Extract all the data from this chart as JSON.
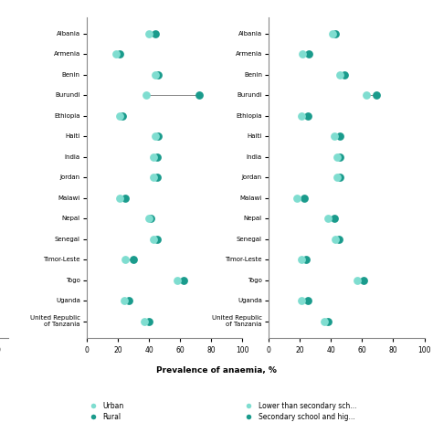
{
  "countries": [
    "Albania",
    "Armenia",
    "Benin",
    "Burundi",
    "Ethiopia",
    "Haiti",
    "India",
    "Jordan",
    "Malawi",
    "Nepal",
    "Senegal",
    "Timor-Leste",
    "Togo",
    "Uganda",
    "United Republic\nof Tanzania"
  ],
  "panel1_urban": [
    40,
    19,
    44,
    38,
    21,
    44,
    43,
    43,
    21,
    40,
    43,
    25,
    58,
    24,
    37
  ],
  "panel1_rural": [
    44,
    21,
    46,
    72,
    23,
    46,
    45,
    45,
    25,
    41,
    45,
    30,
    62,
    27,
    40
  ],
  "panel2_lower": [
    41,
    22,
    46,
    63,
    21,
    42,
    44,
    44,
    18,
    38,
    43,
    21,
    57,
    21,
    36
  ],
  "panel2_secondary": [
    43,
    26,
    49,
    69,
    25,
    46,
    46,
    46,
    23,
    42,
    45,
    24,
    61,
    25,
    38
  ],
  "color_light": "#7FDDD0",
  "color_dark": "#1A9B8C",
  "xlim": [
    0,
    100
  ],
  "xticks": [
    0,
    20,
    40,
    60,
    80,
    100
  ],
  "xlabel": "Prevalence of anaemia, %",
  "ms": 40,
  "legend1_labels": [
    "Urban",
    "Rural"
  ],
  "legend2_labels": [
    "Lower than secondary sch...",
    "Secondary school and hig..."
  ]
}
